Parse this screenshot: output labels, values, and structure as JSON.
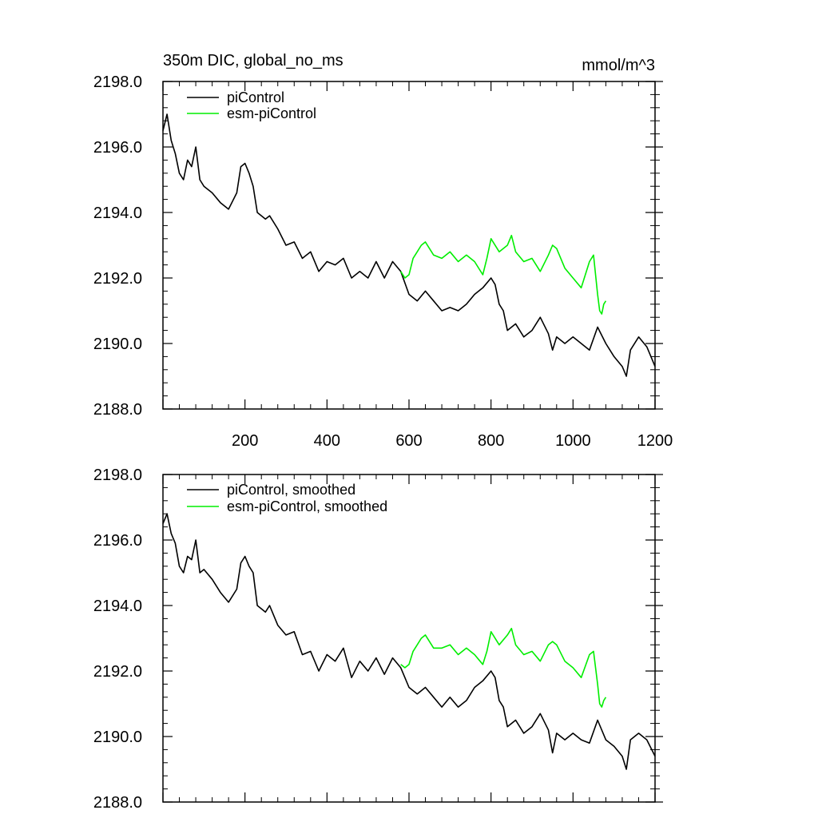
{
  "chart_data": [
    {
      "type": "line",
      "title": "350m DIC, global_no_ms",
      "units": "mmol/m^3",
      "xlim": [
        0,
        1200
      ],
      "ylim": [
        2188.0,
        2198.0
      ],
      "xticks": [
        200,
        400,
        600,
        800,
        1000,
        1200
      ],
      "yticks": [
        "2188.0",
        "2190.0",
        "2192.0",
        "2194.0",
        "2196.0",
        "2198.0"
      ],
      "legend": "top-left",
      "series": [
        {
          "name": "piControl",
          "color": "#000000",
          "x": [
            0,
            10,
            20,
            30,
            40,
            50,
            60,
            70,
            80,
            90,
            100,
            120,
            140,
            160,
            180,
            190,
            200,
            210,
            220,
            230,
            250,
            260,
            280,
            300,
            320,
            340,
            360,
            380,
            400,
            420,
            440,
            460,
            480,
            500,
            520,
            540,
            560,
            580,
            600,
            620,
            640,
            660,
            680,
            700,
            720,
            740,
            760,
            780,
            800,
            810,
            820,
            830,
            840,
            860,
            880,
            900,
            920,
            940,
            950,
            960,
            980,
            1000,
            1020,
            1040,
            1060,
            1080,
            1100,
            1120,
            1130,
            1140,
            1160,
            1180,
            1200
          ],
          "y": [
            2196.5,
            2197.0,
            2196.2,
            2195.8,
            2195.2,
            2195.0,
            2195.6,
            2195.4,
            2196.0,
            2195.0,
            2194.8,
            2194.6,
            2194.3,
            2194.1,
            2194.6,
            2195.4,
            2195.5,
            2195.2,
            2194.8,
            2194.0,
            2193.8,
            2193.9,
            2193.5,
            2193.0,
            2193.1,
            2192.6,
            2192.8,
            2192.2,
            2192.5,
            2192.4,
            2192.6,
            2192.0,
            2192.2,
            2192.0,
            2192.5,
            2192.0,
            2192.5,
            2192.2,
            2191.5,
            2191.3,
            2191.6,
            2191.3,
            2191.0,
            2191.1,
            2191.0,
            2191.2,
            2191.5,
            2191.7,
            2192.0,
            2191.8,
            2191.2,
            2191.0,
            2190.4,
            2190.6,
            2190.2,
            2190.4,
            2190.8,
            2190.3,
            2189.8,
            2190.2,
            2190.0,
            2190.2,
            2190.0,
            2189.8,
            2190.5,
            2190.0,
            2189.6,
            2189.3,
            2189.0,
            2189.8,
            2190.2,
            2189.9,
            2189.3
          ]
        },
        {
          "name": "esm-piControl",
          "color": "#00ee00",
          "x": [
            580,
            590,
            600,
            610,
            620,
            630,
            640,
            660,
            680,
            700,
            720,
            740,
            760,
            780,
            790,
            800,
            820,
            840,
            850,
            860,
            880,
            900,
            920,
            940,
            950,
            960,
            980,
            1000,
            1020,
            1040,
            1050,
            1060,
            1065,
            1070,
            1075,
            1080
          ],
          "y": [
            2192.2,
            2192.0,
            2192.1,
            2192.6,
            2192.8,
            2193.0,
            2193.1,
            2192.7,
            2192.6,
            2192.8,
            2192.5,
            2192.7,
            2192.5,
            2192.1,
            2192.6,
            2193.2,
            2192.8,
            2193.0,
            2193.3,
            2192.8,
            2192.5,
            2192.6,
            2192.2,
            2192.7,
            2193.0,
            2192.9,
            2192.3,
            2192.0,
            2191.7,
            2192.5,
            2192.7,
            2191.5,
            2191.0,
            2190.9,
            2191.2,
            2191.3
          ]
        }
      ]
    },
    {
      "type": "line",
      "xlim": [
        0,
        1200
      ],
      "ylim": [
        2188.0,
        2198.0
      ],
      "yticks": [
        "2188.0",
        "2190.0",
        "2192.0",
        "2194.0",
        "2196.0",
        "2198.0"
      ],
      "legend": "top-left",
      "series": [
        {
          "name": "piControl, smoothed",
          "color": "#000000",
          "x": [
            0,
            10,
            20,
            30,
            40,
            50,
            60,
            70,
            80,
            90,
            100,
            120,
            140,
            160,
            180,
            190,
            200,
            210,
            220,
            230,
            250,
            260,
            280,
            300,
            320,
            340,
            360,
            380,
            400,
            420,
            440,
            460,
            480,
            500,
            520,
            540,
            560,
            580,
            600,
            620,
            640,
            660,
            680,
            700,
            720,
            740,
            760,
            780,
            800,
            810,
            820,
            830,
            840,
            860,
            880,
            900,
            920,
            940,
            950,
            960,
            980,
            1000,
            1020,
            1040,
            1060,
            1080,
            1100,
            1120,
            1130,
            1140,
            1160,
            1180,
            1200
          ],
          "y": [
            2196.5,
            2196.8,
            2196.2,
            2195.9,
            2195.2,
            2195.0,
            2195.5,
            2195.4,
            2196.0,
            2195.0,
            2195.1,
            2194.8,
            2194.4,
            2194.1,
            2194.5,
            2195.3,
            2195.5,
            2195.2,
            2195.0,
            2194.0,
            2193.8,
            2194.0,
            2193.4,
            2193.1,
            2193.2,
            2192.5,
            2192.6,
            2192.0,
            2192.5,
            2192.3,
            2192.7,
            2191.8,
            2192.3,
            2192.0,
            2192.4,
            2191.9,
            2192.4,
            2192.1,
            2191.5,
            2191.3,
            2191.5,
            2191.2,
            2190.9,
            2191.2,
            2190.9,
            2191.1,
            2191.5,
            2191.7,
            2192.0,
            2191.8,
            2191.1,
            2190.9,
            2190.3,
            2190.5,
            2190.1,
            2190.3,
            2190.7,
            2190.2,
            2189.5,
            2190.1,
            2189.9,
            2190.1,
            2189.9,
            2189.8,
            2190.5,
            2189.9,
            2189.7,
            2189.4,
            2189.0,
            2189.9,
            2190.1,
            2189.9,
            2189.4
          ]
        },
        {
          "name": "esm-piControl, smoothed",
          "color": "#00ee00",
          "x": [
            580,
            590,
            600,
            610,
            620,
            630,
            640,
            660,
            680,
            700,
            720,
            740,
            760,
            780,
            790,
            800,
            820,
            840,
            850,
            860,
            880,
            900,
            920,
            940,
            950,
            960,
            980,
            1000,
            1020,
            1040,
            1050,
            1060,
            1065,
            1070,
            1075,
            1080
          ],
          "y": [
            2192.2,
            2192.1,
            2192.2,
            2192.6,
            2192.8,
            2193.0,
            2193.1,
            2192.7,
            2192.7,
            2192.8,
            2192.5,
            2192.7,
            2192.5,
            2192.2,
            2192.6,
            2193.2,
            2192.8,
            2193.1,
            2193.3,
            2192.8,
            2192.5,
            2192.6,
            2192.3,
            2192.8,
            2192.9,
            2192.8,
            2192.3,
            2192.1,
            2191.8,
            2192.5,
            2192.6,
            2191.6,
            2191.0,
            2190.9,
            2191.1,
            2191.2
          ]
        }
      ]
    }
  ]
}
